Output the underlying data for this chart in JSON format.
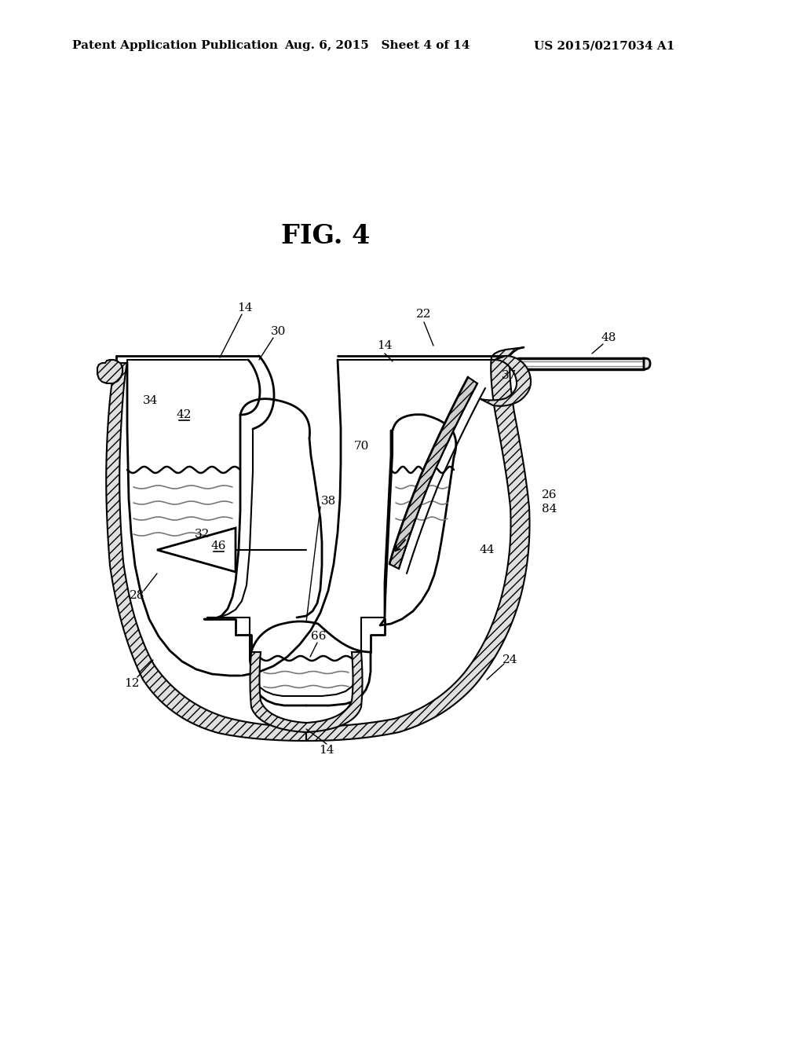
{
  "title": "FIG. 4",
  "header_left": "Patent Application Publication",
  "header_center": "Aug. 6, 2015   Sheet 4 of 14",
  "header_right": "US 2015/0217034 A1",
  "bg_color": "#ffffff"
}
